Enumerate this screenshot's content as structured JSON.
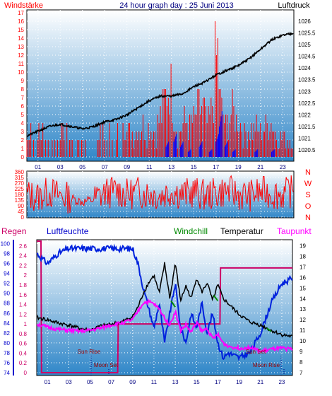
{
  "header": {
    "left_label": "Windstärke",
    "title": "24 hour graph day : 25 Juni 2013",
    "right_label": "Luftdruck"
  },
  "mid_header": {
    "left_label": "Regen",
    "humidity_label": "Luftfeuchte",
    "windchill_label": "Windchill",
    "temperature_label": "Temperatur",
    "dewpoint_label": "Taupunkt"
  },
  "colors": {
    "sky_top": "#ffffff",
    "sky_bottom": "#2f86c8",
    "grid": "#ffffff",
    "wind_red": "#ff0000",
    "wind_blue": "#0000ff",
    "pressure": "#000000",
    "humidity": "#0022dd",
    "temperature": "#000000",
    "dewpoint": "#ff00ff",
    "windchill": "#008800",
    "rain": "#cc0066",
    "axis_red": "#ff0000",
    "axis_blue": "#0000cc",
    "label_maroon": "#990000",
    "label_darkblue": "#000080"
  },
  "chart_data": [
    {
      "type": "bar",
      "name_text": "wind-pressure",
      "x_ticks": [
        "01",
        "03",
        "05",
        "07",
        "09",
        "11",
        "13",
        "15",
        "17",
        "19",
        "21",
        "23"
      ],
      "x_range": [
        0,
        24
      ],
      "left_axis": {
        "label": "Windstärke",
        "ticks": [
          0,
          1,
          2,
          3,
          4,
          5,
          6,
          7,
          8,
          9,
          10,
          11,
          12,
          13,
          14,
          15,
          16,
          17
        ],
        "range": [
          0,
          17
        ]
      },
      "right_axis": {
        "label": "Luftdruck",
        "ticks": [
          "1020.5",
          "1021",
          "1021.5",
          "1022",
          "1022.5",
          "1023",
          "1023.5",
          "1024",
          "1024.5",
          "1025",
          "1025.5",
          "1026"
        ],
        "range": [
          1020.2,
          1026.3
        ]
      },
      "pressure_series": {
        "x": [
          0,
          1,
          2,
          3,
          4,
          5,
          6,
          7,
          8,
          9,
          10,
          11,
          12,
          13,
          14,
          15,
          16,
          17,
          18,
          19,
          20,
          21,
          22,
          23,
          24
        ],
        "y": [
          1021.1,
          1021.3,
          1021.5,
          1021.6,
          1021.5,
          1021.4,
          1021.5,
          1021.7,
          1021.8,
          1022.0,
          1022.3,
          1022.6,
          1022.8,
          1022.8,
          1022.9,
          1023.2,
          1023.4,
          1023.7,
          1023.9,
          1024.1,
          1024.4,
          1024.8,
          1025.2,
          1025.4,
          1025.5
        ]
      },
      "wind_speed": {
        "x": [
          9.5,
          10.5,
          11.5,
          12.4,
          12.8,
          13.3,
          13.6,
          14.2,
          14.6,
          15.3,
          15.8,
          16.2,
          16.6,
          17.0,
          17.2,
          17.4,
          17.8,
          18.4,
          19.0,
          19.6,
          20.4,
          21.0,
          21.8,
          22.6,
          23.4
        ],
        "y": [
          4,
          5,
          4,
          9,
          13,
          8,
          4,
          6,
          5,
          7,
          9,
          5,
          8,
          16,
          17,
          9,
          5,
          7,
          6,
          4,
          5,
          4,
          6,
          4,
          3
        ]
      },
      "wind_gust_blue": {
        "x": [
          12.5,
          13.2,
          13.8,
          14.5,
          15.5,
          16.4,
          17.0,
          17.3,
          17.8,
          18.5,
          20.5,
          22.0
        ],
        "y": [
          2,
          3,
          2,
          1,
          2,
          1,
          3,
          6,
          2,
          1,
          1,
          1
        ]
      }
    },
    {
      "type": "line",
      "name_text": "wind-direction",
      "x_range": [
        0,
        24
      ],
      "left_axis": {
        "ticks": [
          0,
          45,
          90,
          135,
          180,
          225,
          270,
          315,
          360
        ],
        "range": [
          0,
          360
        ]
      },
      "right_axis": {
        "ticks": [
          "N",
          "W",
          "S",
          "O",
          "N"
        ]
      },
      "direction_series": {
        "x": [
          0,
          1,
          2,
          3,
          4,
          5,
          6,
          7,
          8,
          9,
          10,
          11,
          12,
          13,
          14,
          15,
          16,
          17,
          18,
          19,
          20,
          21,
          22,
          23,
          24
        ],
        "y": [
          180,
          160,
          200,
          170,
          150,
          120,
          140,
          190,
          210,
          180,
          200,
          190,
          170,
          210,
          180,
          200,
          170,
          190,
          210,
          180,
          170,
          200,
          190,
          180,
          210
        ]
      }
    },
    {
      "type": "line",
      "name_text": "humidity-temperature",
      "x_ticks": [
        "01",
        "03",
        "05",
        "07",
        "09",
        "11",
        "13",
        "15",
        "17",
        "19",
        "21",
        "23"
      ],
      "x_range": [
        0,
        24
      ],
      "rain_axis": {
        "label": "Regen",
        "ticks": [
          "0",
          "0.2",
          "0.4",
          "0.6",
          "0.8",
          "1",
          "1.2",
          "1.4",
          "1.6",
          "1.8",
          "2",
          "2.2",
          "2.4",
          "2.6"
        ],
        "range": [
          0,
          2.7
        ]
      },
      "humidity_axis": {
        "label": "Luftfeuchte",
        "ticks": [
          74,
          76,
          78,
          80,
          82,
          84,
          86,
          88,
          90,
          92,
          94,
          96,
          98,
          100
        ],
        "range": [
          74,
          100.5
        ]
      },
      "temperature_axis": {
        "label": "Temperatur",
        "ticks": [
          7,
          8,
          9,
          10,
          11,
          12,
          13,
          14,
          15,
          16,
          17,
          18,
          19
        ],
        "range": [
          7,
          19.3
        ]
      },
      "humidity_series": {
        "x": [
          0,
          0.5,
          1,
          1.5,
          2,
          3,
          4,
          5,
          6,
          7,
          8,
          9,
          9.5,
          10,
          10.5,
          11,
          11.5,
          12,
          12.5,
          13,
          13.5,
          14,
          14.5,
          15,
          15.5,
          16,
          16.5,
          17,
          17.5,
          18,
          19,
          20,
          21,
          22,
          23,
          24
        ],
        "y": [
          98,
          97,
          96,
          97,
          98,
          99,
          99,
          99,
          99,
          99,
          99,
          99,
          96,
          91,
          87,
          83,
          88,
          80,
          86,
          92,
          83,
          80,
          86,
          83,
          88,
          82,
          86,
          80,
          77,
          78,
          77,
          78,
          82,
          88,
          92,
          93
        ]
      },
      "temperature_series": {
        "x": [
          0,
          1,
          2,
          3,
          4,
          5,
          6,
          7,
          8,
          9,
          9.5,
          10,
          10.5,
          11,
          11.5,
          12,
          12.5,
          13,
          13.5,
          14,
          14.5,
          15,
          15.5,
          16,
          16.5,
          17,
          17.5,
          18,
          19,
          20,
          21,
          22,
          23,
          24
        ],
        "y": [
          12.2,
          12.0,
          11.7,
          11.5,
          11.2,
          11.0,
          11.4,
          11.6,
          11.8,
          12.3,
          13.2,
          14.5,
          15.5,
          16.2,
          14.5,
          17.3,
          14.0,
          17.4,
          13.8,
          15.2,
          14.0,
          16.0,
          14.6,
          15.5,
          13.8,
          15.3,
          14.0,
          13.5,
          12.5,
          11.8,
          11.5,
          11.0,
          10.6,
          10.4
        ]
      },
      "dewpoint_series": {
        "x": [
          0,
          1,
          2,
          3,
          4,
          5,
          6,
          7,
          8,
          9,
          9.5,
          10,
          10.5,
          11,
          11.5,
          12,
          12.5,
          13,
          13.5,
          14,
          14.5,
          15,
          15.5,
          16,
          16.5,
          17,
          17.5,
          18,
          19,
          20,
          21,
          22,
          23,
          24
        ],
        "y": [
          11.6,
          11.3,
          11.1,
          11.0,
          10.9,
          11.0,
          11.2,
          11.5,
          11.7,
          12.0,
          12.8,
          13.6,
          13.7,
          13.5,
          13.0,
          12.2,
          11.5,
          12.8,
          11.0,
          11.5,
          10.8,
          11.8,
          10.9,
          11.2,
          10.2,
          10.6,
          9.8,
          9.5,
          9.3,
          9.4,
          9.0,
          9.2,
          9.3,
          9.2
        ]
      },
      "windchill_series": {
        "x": [
          12.6,
          13.0,
          16.6,
          17.0,
          21.6,
          22.0
        ],
        "y": [
          13.8,
          13.2,
          14.3,
          13.8,
          11.2,
          10.9
        ]
      },
      "rain_series": {
        "x": [
          0,
          0.4,
          0.45,
          7.6,
          7.65,
          17.2,
          17.25,
          24
        ],
        "y": [
          2.7,
          2.7,
          0,
          0,
          1.0,
          1.0,
          2.15,
          2.15
        ]
      },
      "annotations": [
        "Sun Rise",
        "Moon Set",
        "Sun Set",
        "Moon Rise"
      ]
    }
  ]
}
